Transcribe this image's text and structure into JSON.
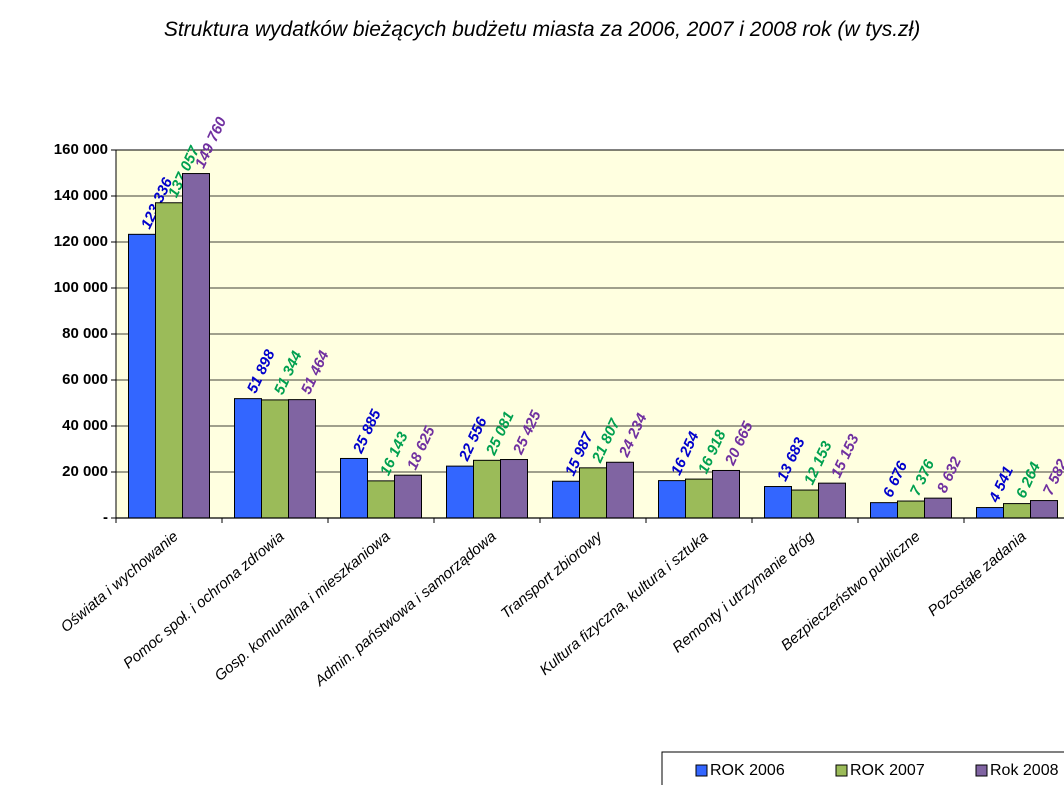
{
  "chart_data": {
    "type": "bar",
    "title": "Struktura wydatków bieżących budżetu miasta za 2006, 2007 i 2008 rok (w tys.zł)",
    "categories": [
      "Oświata i wychowanie",
      "Pomoc społ. i ochrona zdrowia",
      "Gosp. komunalna i mieszkaniowa",
      "Admin. państwowa i samorządowa",
      "Transport zbiorowy",
      "Kultura fizyczna, kultura i sztuka",
      "Remonty i utrzymanie dróg",
      "Bezpieczeństwo publiczne",
      "Pozostałe zadania"
    ],
    "series": [
      {
        "name": "ROK 2006",
        "color": "#3366ff",
        "label_color": "#0000cc",
        "values": [
          123336,
          51898,
          25885,
          22556,
          15987,
          16254,
          13683,
          6676,
          4541
        ],
        "value_labels": [
          "123 336",
          "51 898",
          "25 885",
          "22 556",
          "15 987",
          "16 254",
          "13 683",
          "6 676",
          "4 541"
        ]
      },
      {
        "name": "ROK 2007",
        "color": "#9bbb59",
        "label_color": "#00a050",
        "values": [
          137057,
          51344,
          16143,
          25081,
          21807,
          16918,
          12153,
          7376,
          6264
        ],
        "value_labels": [
          "137 057",
          "51 344",
          "16 143",
          "25 081",
          "21 807",
          "16 918",
          "12 153",
          "7 376",
          "6 264"
        ]
      },
      {
        "name": "Rok 2008",
        "color": "#8064a2",
        "label_color": "#7030a0",
        "values": [
          149760,
          51464,
          18625,
          25425,
          24234,
          20665,
          15153,
          8632,
          7582
        ],
        "value_labels": [
          "149 760",
          "51 464",
          "18 625",
          "25 425",
          "24 234",
          "20 665",
          "15 153",
          "8 632",
          "7 582"
        ]
      }
    ],
    "ylim": [
      0,
      160000
    ],
    "yticks": [
      {
        "value": 0,
        "label": "-"
      },
      {
        "value": 20000,
        "label": "20 000"
      },
      {
        "value": 40000,
        "label": "40 000"
      },
      {
        "value": 60000,
        "label": "60 000"
      },
      {
        "value": 80000,
        "label": "80 000"
      },
      {
        "value": 100000,
        "label": "100 000"
      },
      {
        "value": 120000,
        "label": "120 000"
      },
      {
        "value": 140000,
        "label": "140 000"
      },
      {
        "value": 160000,
        "label": "160 000"
      }
    ],
    "grid": true,
    "plot_background": "#ffffe0",
    "legend": "bottom-right"
  }
}
